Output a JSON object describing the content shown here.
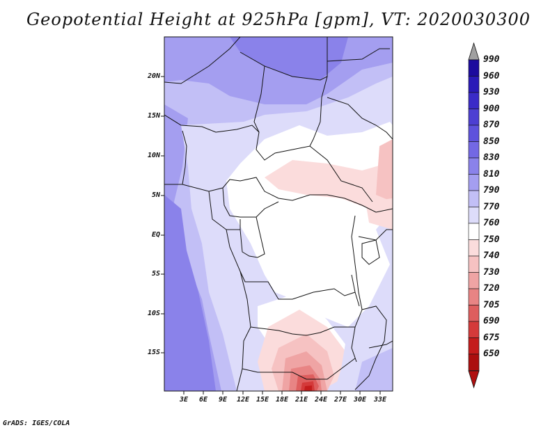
{
  "title": "Geopotential Height at 925hPa [gpm], VT: 2020030300",
  "map": {
    "lat_labels": [
      "20N",
      "15N",
      "10N",
      "5N",
      "EQ",
      "5S",
      "10S",
      "15S"
    ],
    "lon_labels": [
      "3E",
      "6E",
      "9E",
      "12E",
      "15E",
      "18E",
      "21E",
      "24E",
      "27E",
      "30E",
      "33E"
    ]
  },
  "colorbar": {
    "levels": [
      "990",
      "960",
      "930",
      "900",
      "870",
      "850",
      "830",
      "810",
      "790",
      "770",
      "760",
      "750",
      "740",
      "730",
      "720",
      "705",
      "690",
      "675",
      "650"
    ],
    "colors": [
      "#1c0b9e",
      "#2a1ab8",
      "#3a2bc8",
      "#4d3fd2",
      "#5e52dc",
      "#7368e4",
      "#8a82ea",
      "#a49ef0",
      "#c2bff6",
      "#dddcfa",
      "#ffffff",
      "#fbdcdc",
      "#f6c2c2",
      "#efa4a4",
      "#e88484",
      "#de5e5e",
      "#d43a3a",
      "#c41c1c",
      "#ab0f0f"
    ],
    "top_arrow_color": "#a0a0a0",
    "bottom_arrow_color": "#b01010"
  },
  "footer": "GrADS: IGES/COLA"
}
